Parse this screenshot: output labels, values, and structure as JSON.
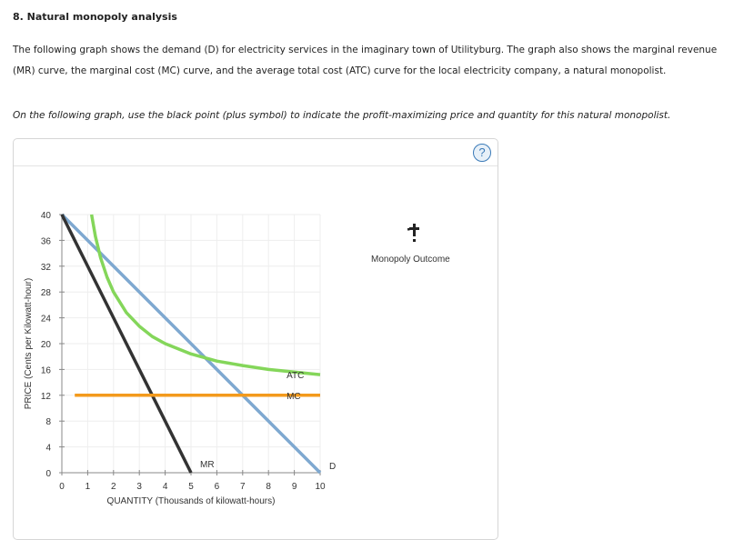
{
  "title": "8. Natural monopoly analysis",
  "intro": "The following graph shows the demand (D) for electricity services in the imaginary town of Utilityburg. The graph also shows the marginal revenue (MR) curve, the marginal cost (MC) curve, and the average total cost (ATC) curve for the local electricity company, a natural monopolist.",
  "instruction": "On the following graph, use the black point (plus symbol) to indicate the profit-maximizing price and quantity for this natural monopolist.",
  "help_label": "?",
  "legend": {
    "label": "Monopoly Outcome",
    "icon": "plus-point-icon"
  },
  "chart_data": {
    "type": "line",
    "xlabel": "QUANTITY (Thousands of kilowatt-hours)",
    "ylabel": "PRICE (Cents per Kilowatt-hour)",
    "xlim": [
      0,
      10
    ],
    "ylim": [
      0,
      40
    ],
    "xticks": [
      0,
      1,
      2,
      3,
      4,
      5,
      6,
      7,
      8,
      9,
      10
    ],
    "yticks": [
      0,
      4,
      8,
      12,
      16,
      20,
      24,
      28,
      32,
      36,
      40
    ],
    "grid": true,
    "series": [
      {
        "name": "D",
        "color": "#7ea8d0",
        "x": [
          0,
          10
        ],
        "y": [
          40,
          0
        ]
      },
      {
        "name": "MR",
        "color": "#333333",
        "x": [
          0,
          5
        ],
        "y": [
          40,
          0
        ]
      },
      {
        "name": "MC",
        "color": "#f39a1c",
        "x": [
          0.5,
          10
        ],
        "y": [
          12,
          12
        ]
      },
      {
        "name": "ATC",
        "color": "#84d65a",
        "x": [
          1.15,
          1.3,
          1.5,
          1.75,
          2,
          2.5,
          3,
          3.5,
          4,
          5,
          6,
          7,
          8,
          9,
          10
        ],
        "y": [
          40,
          36.6,
          33.3,
          30.3,
          28,
          24.8,
          22.7,
          21.1,
          20,
          18.4,
          17.3,
          16.6,
          16,
          15.6,
          15.2
        ]
      }
    ]
  }
}
